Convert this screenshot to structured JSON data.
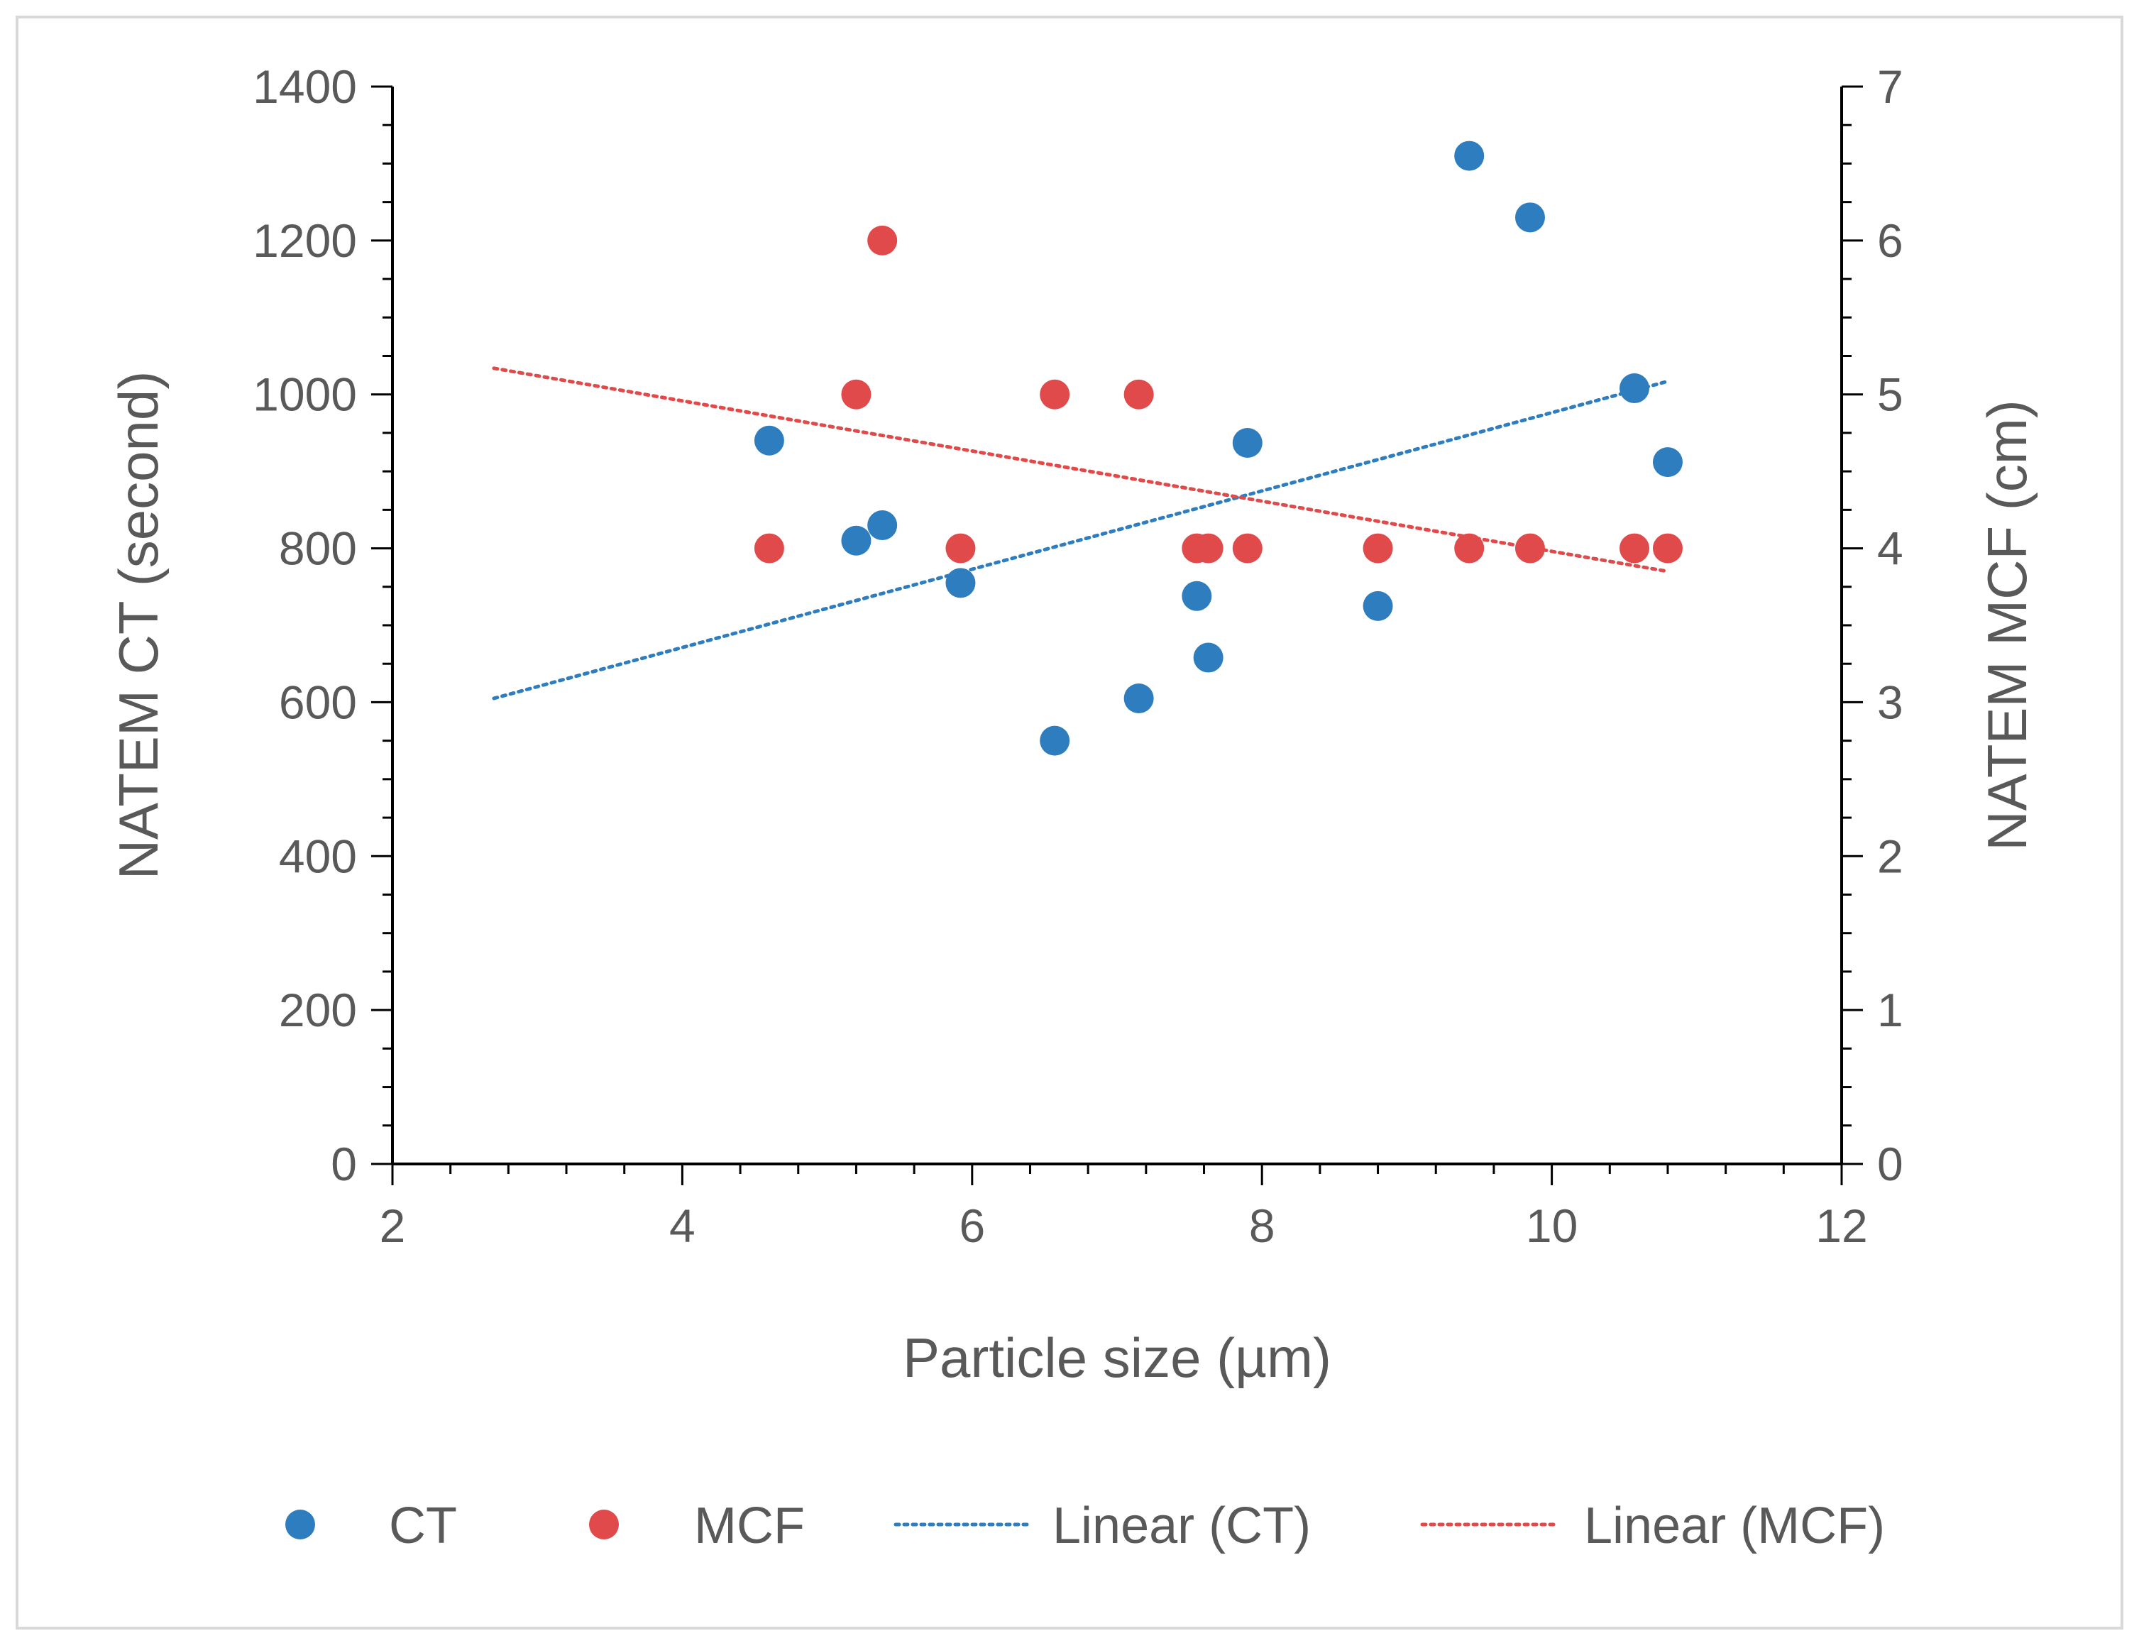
{
  "chart_data": {
    "type": "scatter",
    "title": "",
    "xlabel": "Particle size (µm)",
    "ylabel": "NATEM CT (second)",
    "y2label": "NATEM MCF (cm)",
    "xlim": [
      2,
      12
    ],
    "ylim": [
      0,
      1400
    ],
    "y2lim": [
      0,
      7
    ],
    "x_ticks": [
      "2",
      "4",
      "6",
      "8",
      "10",
      "12"
    ],
    "y_ticks": [
      "0",
      "200",
      "400",
      "600",
      "800",
      "1000",
      "1200",
      "1400"
    ],
    "y2_ticks": [
      "0",
      "1",
      "2",
      "3",
      "4",
      "5",
      "6",
      "7"
    ],
    "grid": false,
    "legend_position": "bottom",
    "colors": {
      "ct": "#2e7dbf",
      "mcf": "#e04a4a",
      "axis": "#000000",
      "text": "#595959",
      "frame": "#d9d9d9"
    },
    "series": [
      {
        "name": "CT",
        "axis": "left",
        "points": [
          {
            "x": 4.6,
            "y": 940
          },
          {
            "x": 5.2,
            "y": 810
          },
          {
            "x": 5.38,
            "y": 830
          },
          {
            "x": 5.92,
            "y": 755
          },
          {
            "x": 6.57,
            "y": 550
          },
          {
            "x": 7.15,
            "y": 605
          },
          {
            "x": 7.55,
            "y": 738
          },
          {
            "x": 7.63,
            "y": 658
          },
          {
            "x": 7.9,
            "y": 937
          },
          {
            "x": 8.8,
            "y": 725
          },
          {
            "x": 9.43,
            "y": 1310
          },
          {
            "x": 9.85,
            "y": 1230
          },
          {
            "x": 10.57,
            "y": 1008
          },
          {
            "x": 10.8,
            "y": 912
          }
        ]
      },
      {
        "name": "MCF",
        "axis": "right",
        "points": [
          {
            "x": 4.6,
            "y": 4
          },
          {
            "x": 5.2,
            "y": 5
          },
          {
            "x": 5.38,
            "y": 6
          },
          {
            "x": 5.92,
            "y": 4
          },
          {
            "x": 6.57,
            "y": 5
          },
          {
            "x": 7.15,
            "y": 5
          },
          {
            "x": 7.55,
            "y": 4
          },
          {
            "x": 7.63,
            "y": 4
          },
          {
            "x": 7.9,
            "y": 4
          },
          {
            "x": 8.8,
            "y": 4
          },
          {
            "x": 9.43,
            "y": 4
          },
          {
            "x": 9.85,
            "y": 4
          },
          {
            "x": 10.57,
            "y": 4
          },
          {
            "x": 10.8,
            "y": 4
          }
        ]
      }
    ],
    "trendlines": [
      {
        "name": "Linear (CT)",
        "axis": "left",
        "x": [
          2.7,
          10.8
        ],
        "y": [
          605,
          1017
        ]
      },
      {
        "name": "Linear (MCF)",
        "axis": "right",
        "x": [
          2.7,
          10.8
        ],
        "y": [
          5.17,
          3.85
        ]
      }
    ],
    "legend": [
      "CT",
      "MCF",
      "Linear (CT)",
      "Linear (MCF)"
    ]
  }
}
